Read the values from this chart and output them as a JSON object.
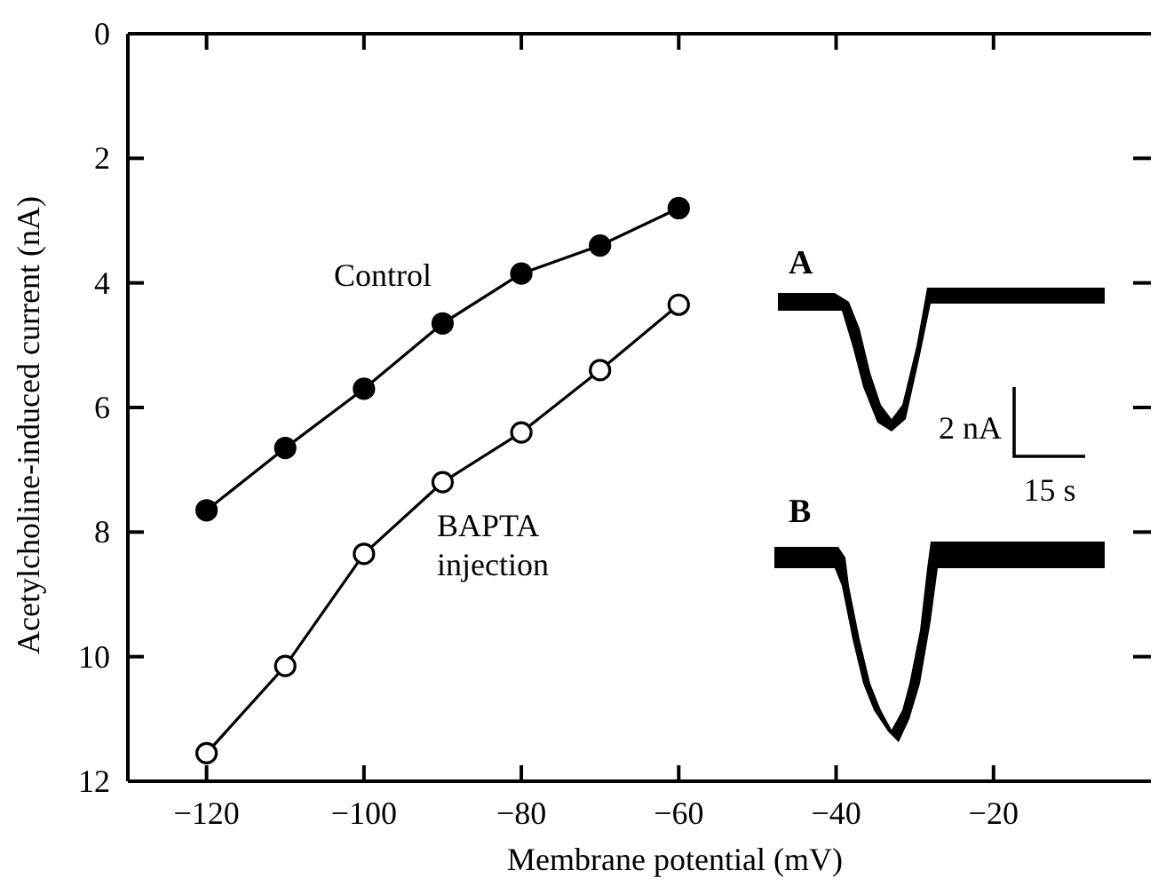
{
  "chart_data": {
    "type": "line",
    "xlabel": "Membrane potential (mV)",
    "ylabel": "Acetylcholine-induced current (nA)",
    "x": [
      -120,
      -110,
      -100,
      -90,
      -80,
      -70,
      -60
    ],
    "series": [
      {
        "name": "Control",
        "color": "#000000",
        "values": [
          7.65,
          6.65,
          5.7,
          4.65,
          3.85,
          3.4,
          2.8
        ]
      },
      {
        "name": "BAPTA injection",
        "color": "#000000",
        "values": [
          11.55,
          10.15,
          8.35,
          7.2,
          6.4,
          5.4,
          4.35
        ]
      }
    ],
    "xlim": [
      -130,
      0
    ],
    "xticks": [
      -120,
      -100,
      -80,
      -60,
      -40,
      -20
    ],
    "ylim": [
      12,
      0
    ],
    "yticks": [
      0,
      2,
      4,
      6,
      8,
      10,
      12
    ],
    "marker": "circle",
    "line_style": "solid",
    "grid": false,
    "annotations": [
      "A",
      "B",
      "2 nA",
      "15 s"
    ]
  }
}
